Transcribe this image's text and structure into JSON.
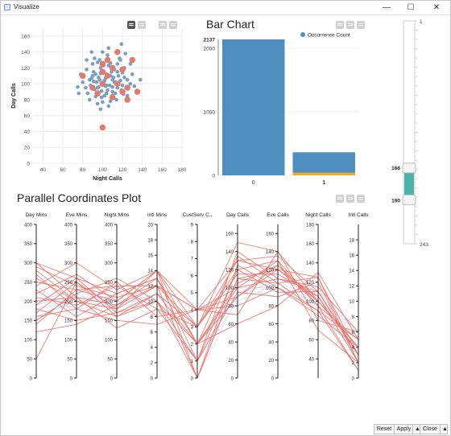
{
  "window": {
    "title": "Visualize",
    "minimize_glyph": "—",
    "maximize_glyph": "☐",
    "close_glyph": "✕"
  },
  "scatter": {
    "xlabel": "Night Calls",
    "ylabel": "Day Calls",
    "x_ticks": [
      "40",
      "60",
      "80",
      "100",
      "120",
      "140",
      "160",
      "180"
    ],
    "y_ticks": [
      "0",
      "20",
      "40",
      "60",
      "80",
      "100",
      "120",
      "140",
      "160"
    ],
    "points_blue": [
      [
        95,
        95
      ],
      [
        100,
        100
      ],
      [
        105,
        92
      ],
      [
        110,
        105
      ],
      [
        90,
        110
      ],
      [
        120,
        98
      ],
      [
        115,
        115
      ],
      [
        98,
        120
      ],
      [
        102,
        85
      ],
      [
        85,
        88
      ],
      [
        108,
        78
      ],
      [
        118,
        130
      ],
      [
        92,
        132
      ],
      [
        100,
        140
      ],
      [
        130,
        112
      ],
      [
        125,
        85
      ],
      [
        80,
        102
      ],
      [
        75,
        96
      ],
      [
        112,
        102
      ],
      [
        96,
        108
      ],
      [
        104,
        112
      ],
      [
        88,
        98
      ],
      [
        122,
        108
      ],
      [
        110,
        90
      ],
      [
        99,
        91
      ],
      [
        93,
        84
      ],
      [
        115,
        95
      ],
      [
        106,
        123
      ],
      [
        90,
        125
      ],
      [
        128,
        100
      ],
      [
        84,
        118
      ],
      [
        101,
        99
      ],
      [
        111,
        108
      ],
      [
        97,
        105
      ],
      [
        119,
        92
      ],
      [
        107,
        98
      ],
      [
        94,
        102
      ],
      [
        103,
        107
      ],
      [
        116,
        110
      ],
      [
        89,
        107
      ],
      [
        100,
        77
      ],
      [
        122,
        120
      ],
      [
        105,
        136
      ],
      [
        95,
        127
      ],
      [
        109,
        115
      ],
      [
        113,
        88
      ],
      [
        92,
        93
      ],
      [
        126,
        95
      ],
      [
        87,
        80
      ],
      [
        118,
        104
      ],
      [
        98,
        113
      ],
      [
        104,
        88
      ],
      [
        110,
        96
      ],
      [
        96,
        96
      ],
      [
        102,
        104
      ],
      [
        120,
        114
      ],
      [
        83,
        95
      ],
      [
        108,
        126
      ],
      [
        121,
        87
      ],
      [
        99,
        83
      ],
      [
        106,
        72
      ],
      [
        91,
        115
      ],
      [
        115,
        125
      ],
      [
        117,
        132
      ],
      [
        100,
        116
      ],
      [
        93,
        112
      ],
      [
        112,
        118
      ],
      [
        125,
        105
      ],
      [
        78,
        112
      ],
      [
        95,
        75
      ],
      [
        108,
        110
      ],
      [
        101,
        123
      ],
      [
        132,
        97
      ],
      [
        114,
        80
      ],
      [
        87,
        105
      ],
      [
        119,
        150
      ],
      [
        128,
        125
      ],
      [
        123,
        138
      ],
      [
        89,
        140
      ],
      [
        106,
        145
      ],
      [
        98,
        68
      ],
      [
        84,
        130
      ],
      [
        138,
        105
      ],
      [
        76,
        88
      ],
      [
        97,
        130
      ],
      [
        113,
        102
      ],
      [
        103,
        97
      ],
      [
        110,
        85
      ],
      [
        91,
        103
      ],
      [
        104,
        98
      ]
    ],
    "points_red": [
      [
        80,
        110
      ],
      [
        115,
        140
      ],
      [
        130,
        130
      ],
      [
        105,
        130
      ],
      [
        100,
        125
      ],
      [
        110,
        120
      ],
      [
        120,
        118
      ],
      [
        100,
        100
      ],
      [
        95,
        88
      ],
      [
        115,
        100
      ],
      [
        125,
        95
      ],
      [
        120,
        90
      ],
      [
        135,
        90
      ],
      [
        110,
        83
      ],
      [
        125,
        80
      ],
      [
        100,
        115
      ],
      [
        90,
        95
      ],
      [
        105,
        110
      ],
      [
        100,
        45
      ]
    ]
  },
  "bar_chart": {
    "title": "Bar Chart",
    "legend": "Occurrence Count",
    "y_ticks": [
      "0",
      "1000",
      "2000"
    ],
    "max_label": "2137",
    "categories": [
      "0",
      "1"
    ],
    "values": [
      2137,
      363
    ],
    "highlight_values": [
      0,
      30
    ],
    "colors": {
      "bar": "#4f8fc0",
      "highlight": "#e8b02d"
    }
  },
  "slider": {
    "top_value": "1",
    "bottom_value": "243",
    "handle_high_value": "166",
    "handle_low_value": "190",
    "range_min": 1,
    "range_max": 243,
    "handle_high": 166,
    "handle_low": 190
  },
  "parallel": {
    "title": "Parallel Coordinates Plot",
    "axes": [
      {
        "name": "Day Mins",
        "min": 0,
        "max": 400,
        "ticks": [
          "0",
          "50",
          "100",
          "150",
          "200",
          "250",
          "300",
          "350",
          "400"
        ]
      },
      {
        "name": "Eve Mins",
        "min": 0,
        "max": 400,
        "ticks": [
          "0",
          "50",
          "100",
          "150",
          "200",
          "250",
          "300",
          "350",
          "400"
        ]
      },
      {
        "name": "Night Mins",
        "min": 0,
        "max": 400,
        "ticks": [
          "0",
          "50",
          "100",
          "150",
          "200",
          "250",
          "300",
          "350",
          "400"
        ]
      },
      {
        "name": "Intl Mins",
        "min": 0,
        "max": 20,
        "ticks": [
          "0",
          "2",
          "4",
          "6",
          "8",
          "10",
          "12",
          "14",
          "16",
          "18",
          "20"
        ]
      },
      {
        "name": "CustServ C..",
        "min": 0,
        "max": 9,
        "ticks": [
          "0",
          "1",
          "2",
          "3",
          "4",
          "5",
          "6",
          "7",
          "8",
          "9"
        ]
      },
      {
        "name": "Day Calls",
        "min": 0,
        "max": 170,
        "ticks": [
          "0",
          "20",
          "40",
          "60",
          "80",
          "100",
          "120",
          "140",
          "160"
        ]
      },
      {
        "name": "Eve Calls",
        "min": 0,
        "max": 170,
        "ticks": [
          "0",
          "20",
          "40",
          "60",
          "80",
          "100",
          "120",
          "140",
          "160"
        ]
      },
      {
        "name": "Night Calls",
        "min": 20,
        "max": 180,
        "ticks": [
          "40",
          "60",
          "80",
          "100",
          "120",
          "140",
          "160",
          "180"
        ]
      },
      {
        "name": "Intl Calls",
        "min": 0,
        "max": 20,
        "ticks": [
          "0",
          "2",
          "4",
          "6",
          "8",
          "10",
          "12",
          "14",
          "16",
          "18"
        ]
      }
    ],
    "lines_red": [
      [
        280,
        200,
        180,
        14,
        3,
        130,
        120,
        100,
        4
      ],
      [
        300,
        260,
        220,
        13,
        2,
        100,
        110,
        110,
        3
      ],
      [
        250,
        230,
        240,
        12,
        4,
        90,
        120,
        105,
        2
      ],
      [
        180,
        150,
        170,
        10,
        1,
        120,
        130,
        95,
        5
      ],
      [
        220,
        270,
        200,
        14,
        0,
        110,
        105,
        125,
        3
      ],
      [
        160,
        180,
        250,
        8,
        4,
        80,
        100,
        90,
        1
      ],
      [
        260,
        200,
        160,
        11,
        3,
        150,
        140,
        80,
        6
      ],
      [
        120,
        140,
        190,
        13,
        2,
        105,
        125,
        100,
        4
      ],
      [
        200,
        210,
        130,
        9,
        1,
        95,
        90,
        120,
        2
      ],
      [
        290,
        240,
        210,
        12,
        4,
        130,
        135,
        110,
        3
      ],
      [
        240,
        300,
        230,
        14,
        2,
        60,
        80,
        130,
        5
      ],
      [
        150,
        220,
        260,
        10,
        0,
        125,
        100,
        85,
        4
      ],
      [
        50,
        250,
        180,
        12,
        3,
        115,
        115,
        105,
        3
      ],
      [
        270,
        180,
        150,
        7,
        4,
        100,
        130,
        70,
        2
      ],
      [
        230,
        160,
        220,
        13,
        1,
        140,
        110,
        115,
        6
      ],
      [
        190,
        260,
        170,
        11,
        2,
        90,
        125,
        95,
        1
      ],
      [
        210,
        190,
        240,
        9,
        3,
        120,
        95,
        110,
        3
      ],
      [
        140,
        230,
        200,
        14,
        4,
        70,
        140,
        100,
        4
      ],
      [
        300,
        210,
        190,
        12,
        0,
        110,
        120,
        125,
        2
      ],
      [
        170,
        250,
        160,
        10,
        2,
        135,
        105,
        90,
        5
      ]
    ],
    "lines_bg": [
      [
        180,
        200,
        200,
        10,
        1,
        100,
        100,
        100,
        4
      ],
      [
        220,
        180,
        190,
        11,
        2,
        95,
        105,
        95,
        3
      ],
      [
        150,
        210,
        210,
        9,
        1,
        105,
        95,
        110,
        5
      ],
      [
        200,
        230,
        180,
        12,
        0,
        90,
        110,
        105,
        4
      ],
      [
        170,
        190,
        220,
        10,
        2,
        110,
        100,
        90,
        3
      ],
      [
        240,
        170,
        200,
        8,
        1,
        100,
        90,
        115,
        2
      ],
      [
        190,
        220,
        170,
        11,
        3,
        115,
        115,
        100,
        4
      ],
      [
        160,
        200,
        230,
        10,
        1,
        85,
        105,
        105,
        6
      ]
    ],
    "colors": {
      "selected": "#e8726a",
      "background": "#c9d8ec"
    }
  },
  "footer": {
    "reset": "Reset",
    "apply": "Apply",
    "apply_menu": "▲",
    "close": "Close",
    "close_menu": "▲"
  }
}
